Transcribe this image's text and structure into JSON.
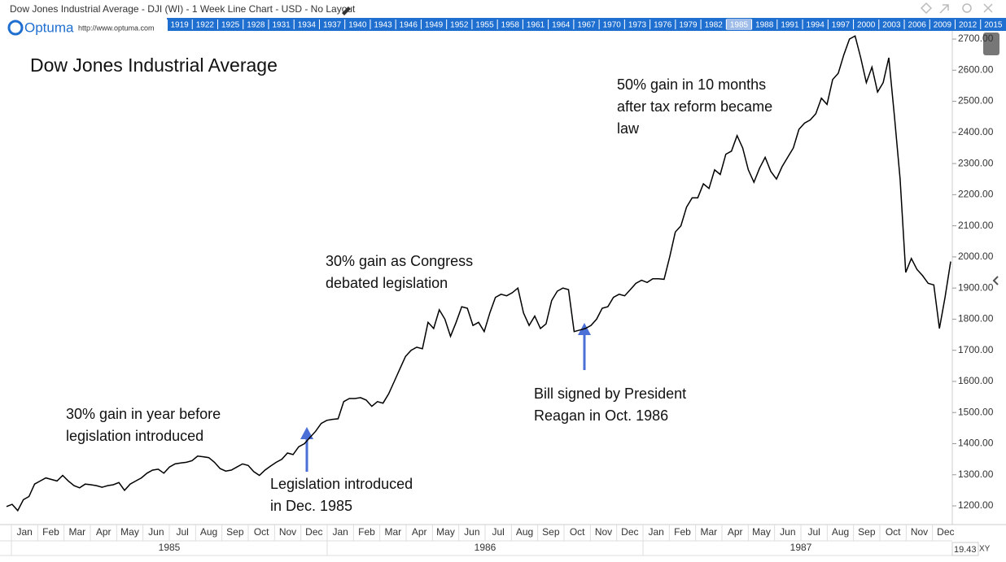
{
  "header": {
    "title": "Dow Jones Industrial Average - DJI (WI) - 1 Week Line Chart - USD - No Layout",
    "brand": "Optuma",
    "url": "http://www.optuma.com",
    "years_ribbon": [
      "1919",
      "1922",
      "1925",
      "1928",
      "1931",
      "1934",
      "1937",
      "1940",
      "1943",
      "1946",
      "1949",
      "1952",
      "1955",
      "1958",
      "1961",
      "1964",
      "1967",
      "1970",
      "1973",
      "1976",
      "1979",
      "1982",
      "1985",
      "1988",
      "1991",
      "1994",
      "1997",
      "2000",
      "2003",
      "2006",
      "2009",
      "2012",
      "2015"
    ],
    "ribbon_highlight": "1985"
  },
  "footer": {
    "scale_value": "19.43",
    "mode": "XY"
  },
  "chart_data": {
    "type": "line",
    "title": "Dow Jones Industrial Average",
    "color": "#000000",
    "months": [
      "Jan",
      "Feb",
      "Mar",
      "Apr",
      "May",
      "Jun",
      "Jul",
      "Aug",
      "Sep",
      "Oct",
      "Nov",
      "Dec",
      "Jan",
      "Feb",
      "Mar",
      "Apr",
      "May",
      "Jun",
      "Jul",
      "Aug",
      "Sep",
      "Oct",
      "Nov",
      "Dec",
      "Jan",
      "Feb",
      "Mar",
      "Apr",
      "May",
      "Jun",
      "Jul",
      "Aug",
      "Sep",
      "Oct",
      "Nov",
      "Dec"
    ],
    "years": [
      "1985",
      "1986",
      "1987"
    ],
    "values": [
      1198,
      1205,
      1185,
      1220,
      1230,
      1270,
      1280,
      1290,
      1285,
      1280,
      1298,
      1280,
      1265,
      1258,
      1270,
      1268,
      1265,
      1260,
      1265,
      1268,
      1275,
      1250,
      1270,
      1280,
      1290,
      1305,
      1315,
      1318,
      1305,
      1325,
      1335,
      1338,
      1340,
      1345,
      1360,
      1358,
      1355,
      1340,
      1320,
      1312,
      1315,
      1325,
      1335,
      1330,
      1310,
      1298,
      1315,
      1328,
      1340,
      1350,
      1370,
      1365,
      1390,
      1400,
      1420,
      1440,
      1465,
      1475,
      1478,
      1480,
      1535,
      1545,
      1545,
      1548,
      1540,
      1520,
      1535,
      1530,
      1560,
      1600,
      1640,
      1680,
      1700,
      1710,
      1705,
      1790,
      1770,
      1830,
      1800,
      1745,
      1790,
      1840,
      1835,
      1780,
      1790,
      1760,
      1820,
      1870,
      1880,
      1875,
      1885,
      1900,
      1820,
      1780,
      1810,
      1770,
      1785,
      1860,
      1890,
      1900,
      1895,
      1760,
      1765,
      1770,
      1780,
      1800,
      1835,
      1840,
      1870,
      1880,
      1875,
      1895,
      1915,
      1925,
      1918,
      1930,
      1930,
      1928,
      2000,
      2080,
      2100,
      2160,
      2190,
      2190,
      2235,
      2220,
      2280,
      2265,
      2330,
      2340,
      2390,
      2350,
      2280,
      2240,
      2285,
      2320,
      2275,
      2250,
      2290,
      2320,
      2350,
      2410,
      2430,
      2440,
      2460,
      2510,
      2490,
      2570,
      2590,
      2650,
      2700,
      2710,
      2640,
      2560,
      2610,
      2530,
      2560,
      2640,
      2450,
      2250,
      1950,
      1995,
      1960,
      1940,
      1915,
      1910,
      1770,
      1870,
      1985
    ],
    "ylim": [
      1153,
      2721
    ],
    "yticks": [
      {
        "value": 1200,
        "label": "1200.00"
      },
      {
        "value": 1300,
        "label": "1300.00"
      },
      {
        "value": 1400,
        "label": "1400.00"
      },
      {
        "value": 1500,
        "label": "1500.00"
      },
      {
        "value": 1600,
        "label": "1600.00"
      },
      {
        "value": 1700,
        "label": "1700.00"
      },
      {
        "value": 1800,
        "label": "1800.00"
      },
      {
        "value": 1900,
        "label": "1900.00"
      },
      {
        "value": 2000,
        "label": "2000.00"
      },
      {
        "value": 2100,
        "label": "2100.00"
      },
      {
        "value": 2200,
        "label": "2200.00"
      },
      {
        "value": 2300,
        "label": "2300.00"
      },
      {
        "value": 2400,
        "label": "2400.00"
      },
      {
        "value": 2500,
        "label": "2500.00"
      },
      {
        "value": 2600,
        "label": "2600.00"
      },
      {
        "value": 2700,
        "label": "2700.00"
      }
    ],
    "annotations": [
      {
        "lines": [
          "30% gain in year before",
          "legislation introduced"
        ]
      },
      {
        "lines": [
          "Legislation introduced",
          "in Dec. 1985"
        ]
      },
      {
        "lines": [
          "30% gain as Congress",
          "debated legislation"
        ]
      },
      {
        "lines": [
          "Bill signed by President",
          "Reagan in Oct. 1986"
        ]
      },
      {
        "lines": [
          "50% gain in 10 months",
          "after tax reform became",
          "law"
        ]
      }
    ]
  }
}
